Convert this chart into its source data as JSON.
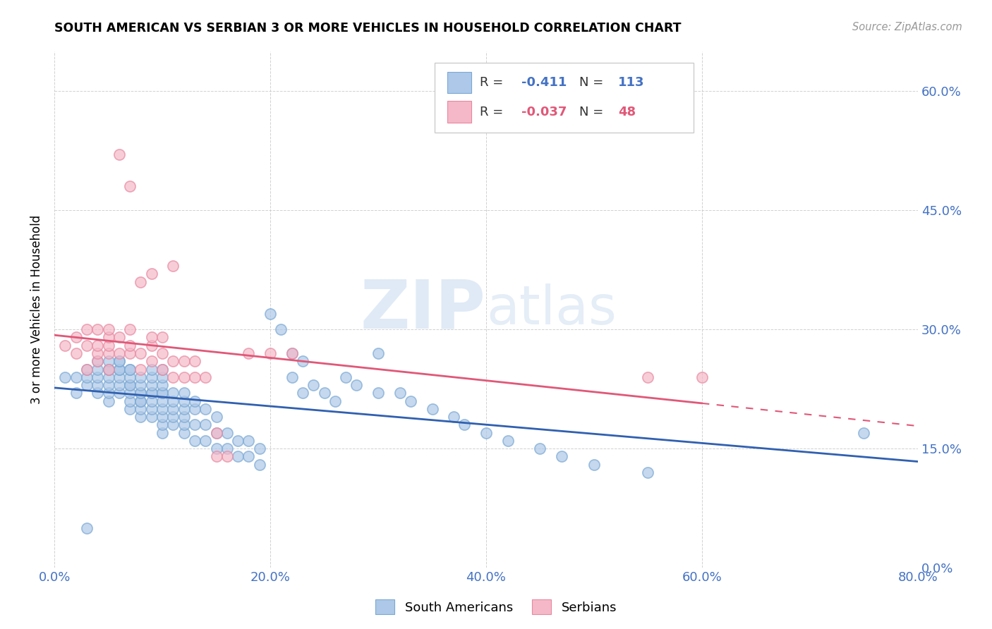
{
  "title": "SOUTH AMERICAN VS SERBIAN 3 OR MORE VEHICLES IN HOUSEHOLD CORRELATION CHART",
  "source": "Source: ZipAtlas.com",
  "xlabel_ticks": [
    "0.0%",
    "20.0%",
    "40.0%",
    "60.0%",
    "80.0%"
  ],
  "ylabel_ticks": [
    "0.0%",
    "15.0%",
    "30.0%",
    "45.0%",
    "60.0%"
  ],
  "xlabel_range": [
    0.0,
    0.8
  ],
  "ylabel_range": [
    0.0,
    0.65
  ],
  "ylabel_label": "3 or more Vehicles in Household",
  "legend_label1": "South Americans",
  "legend_label2": "Serbians",
  "R1": "-0.411",
  "N1": "113",
  "R2": "-0.037",
  "N2": "48",
  "color_blue_fill": "#adc8e8",
  "color_blue_edge": "#7aa8d4",
  "color_pink_fill": "#f5b8c8",
  "color_pink_edge": "#e888a0",
  "color_blue_text": "#4472c4",
  "color_pink_text": "#e05878",
  "color_blue_line": "#3060b0",
  "color_pink_line": "#e05878",
  "watermark_color": "#ddeeff",
  "grid_color": "#cccccc",
  "south_american_x": [
    0.01,
    0.02,
    0.02,
    0.03,
    0.03,
    0.03,
    0.03,
    0.04,
    0.04,
    0.04,
    0.04,
    0.04,
    0.05,
    0.05,
    0.05,
    0.05,
    0.05,
    0.05,
    0.05,
    0.06,
    0.06,
    0.06,
    0.06,
    0.06,
    0.06,
    0.06,
    0.07,
    0.07,
    0.07,
    0.07,
    0.07,
    0.07,
    0.07,
    0.07,
    0.08,
    0.08,
    0.08,
    0.08,
    0.08,
    0.08,
    0.08,
    0.08,
    0.09,
    0.09,
    0.09,
    0.09,
    0.09,
    0.09,
    0.09,
    0.09,
    0.1,
    0.1,
    0.1,
    0.1,
    0.1,
    0.1,
    0.1,
    0.1,
    0.1,
    0.1,
    0.11,
    0.11,
    0.11,
    0.11,
    0.11,
    0.12,
    0.12,
    0.12,
    0.12,
    0.12,
    0.12,
    0.13,
    0.13,
    0.13,
    0.13,
    0.14,
    0.14,
    0.14,
    0.15,
    0.15,
    0.15,
    0.16,
    0.16,
    0.17,
    0.17,
    0.18,
    0.18,
    0.19,
    0.19,
    0.2,
    0.21,
    0.22,
    0.22,
    0.23,
    0.23,
    0.24,
    0.25,
    0.26,
    0.27,
    0.28,
    0.3,
    0.3,
    0.32,
    0.33,
    0.35,
    0.37,
    0.38,
    0.4,
    0.42,
    0.45,
    0.47,
    0.5,
    0.55,
    0.75
  ],
  "south_american_y": [
    0.24,
    0.22,
    0.24,
    0.23,
    0.24,
    0.25,
    0.05,
    0.22,
    0.23,
    0.24,
    0.25,
    0.26,
    0.21,
    0.22,
    0.23,
    0.24,
    0.25,
    0.25,
    0.26,
    0.22,
    0.23,
    0.24,
    0.25,
    0.25,
    0.26,
    0.26,
    0.2,
    0.21,
    0.22,
    0.23,
    0.23,
    0.24,
    0.25,
    0.25,
    0.19,
    0.2,
    0.21,
    0.21,
    0.22,
    0.22,
    0.23,
    0.24,
    0.19,
    0.2,
    0.21,
    0.22,
    0.22,
    0.23,
    0.24,
    0.25,
    0.17,
    0.18,
    0.19,
    0.2,
    0.21,
    0.22,
    0.22,
    0.23,
    0.24,
    0.25,
    0.18,
    0.19,
    0.2,
    0.21,
    0.22,
    0.17,
    0.18,
    0.19,
    0.2,
    0.21,
    0.22,
    0.16,
    0.18,
    0.2,
    0.21,
    0.16,
    0.18,
    0.2,
    0.15,
    0.17,
    0.19,
    0.15,
    0.17,
    0.14,
    0.16,
    0.14,
    0.16,
    0.13,
    0.15,
    0.32,
    0.3,
    0.27,
    0.24,
    0.26,
    0.22,
    0.23,
    0.22,
    0.21,
    0.24,
    0.23,
    0.27,
    0.22,
    0.22,
    0.21,
    0.2,
    0.19,
    0.18,
    0.17,
    0.16,
    0.15,
    0.14,
    0.13,
    0.12,
    0.17
  ],
  "serbian_x": [
    0.01,
    0.02,
    0.02,
    0.03,
    0.03,
    0.03,
    0.04,
    0.04,
    0.04,
    0.04,
    0.05,
    0.05,
    0.05,
    0.05,
    0.05,
    0.06,
    0.06,
    0.06,
    0.07,
    0.07,
    0.07,
    0.07,
    0.08,
    0.08,
    0.08,
    0.09,
    0.09,
    0.09,
    0.09,
    0.1,
    0.1,
    0.1,
    0.11,
    0.11,
    0.11,
    0.12,
    0.12,
    0.13,
    0.13,
    0.14,
    0.15,
    0.15,
    0.16,
    0.18,
    0.2,
    0.22,
    0.55,
    0.6
  ],
  "serbian_y": [
    0.28,
    0.27,
    0.29,
    0.25,
    0.28,
    0.3,
    0.26,
    0.27,
    0.28,
    0.3,
    0.25,
    0.27,
    0.28,
    0.29,
    0.3,
    0.27,
    0.29,
    0.52,
    0.27,
    0.28,
    0.3,
    0.48,
    0.25,
    0.27,
    0.36,
    0.26,
    0.28,
    0.29,
    0.37,
    0.25,
    0.27,
    0.29,
    0.24,
    0.26,
    0.38,
    0.24,
    0.26,
    0.24,
    0.26,
    0.24,
    0.14,
    0.17,
    0.14,
    0.27,
    0.27,
    0.27,
    0.24,
    0.24
  ]
}
